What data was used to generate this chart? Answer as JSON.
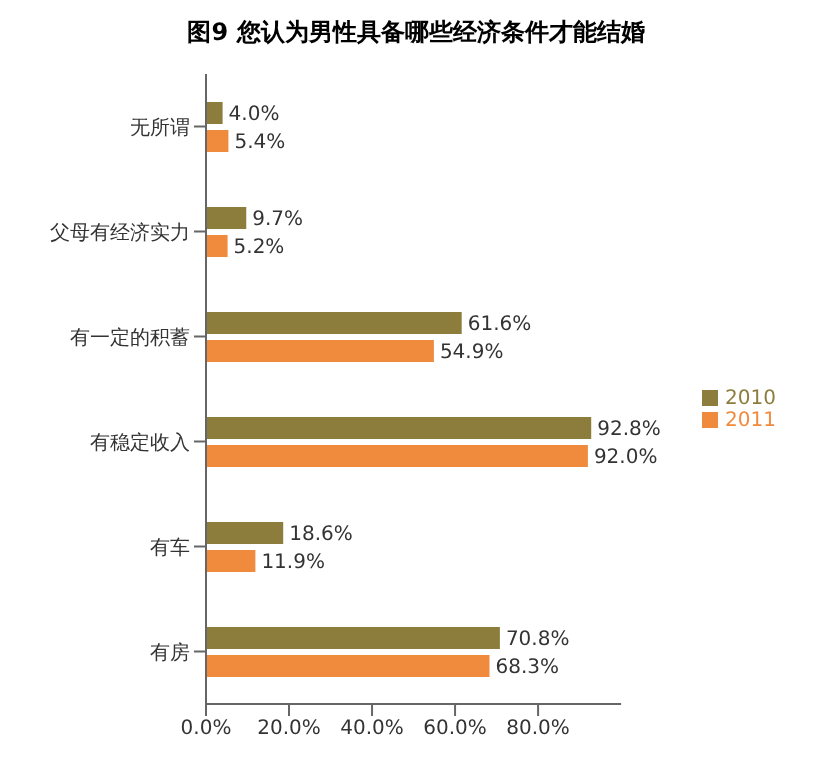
{
  "chart_data": {
    "type": "bar",
    "orientation": "horizontal",
    "title": "图9 您认为男性具备哪些经济条件才能结婚",
    "categories": [
      "无所谓",
      "父母有经济实力",
      "有一定的积蓄",
      "有稳定收入",
      "有车",
      "有房"
    ],
    "series": [
      {
        "name": "2010",
        "color": "#8c7d3c",
        "values": [
          4.0,
          9.7,
          61.6,
          92.8,
          18.6,
          70.8
        ],
        "value_labels": [
          "4.0%",
          "9.7%",
          "61.6%",
          "92.8%",
          "18.6%",
          "70.8%"
        ]
      },
      {
        "name": "2011",
        "color": "#f08a3c",
        "values": [
          5.4,
          5.2,
          54.9,
          92.0,
          11.9,
          68.3
        ],
        "value_labels": [
          "5.4%",
          "5.2%",
          "54.9%",
          "92.0%",
          "11.9%",
          "68.3%"
        ]
      }
    ],
    "xlim": [
      0,
      100
    ],
    "xticks": [
      {
        "value": 0,
        "label": "0.0%"
      },
      {
        "value": 20,
        "label": "20.0%"
      },
      {
        "value": 40,
        "label": "40.0%"
      },
      {
        "value": 60,
        "label": "60.0%"
      },
      {
        "value": 80,
        "label": "80.0%"
      }
    ],
    "grid": false,
    "legend": "right"
  }
}
